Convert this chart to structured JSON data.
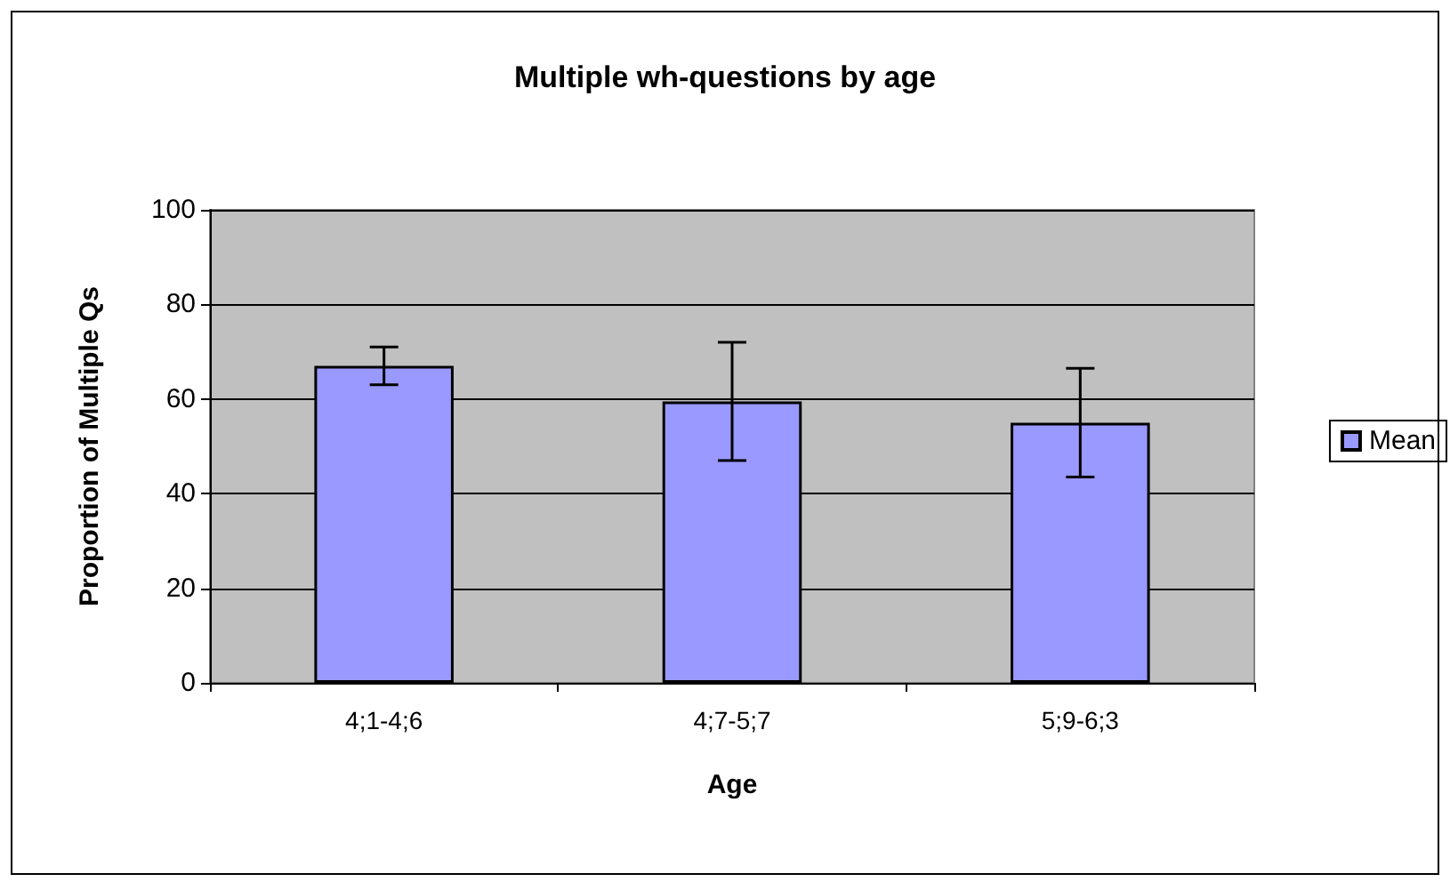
{
  "chart_data": {
    "type": "bar",
    "title": "Multiple wh-questions by age",
    "xlabel": "Age",
    "ylabel": "Proportion of Multiple Qs",
    "categories": [
      "4;1-4;6",
      "4;7-5;7",
      "5;9-6;3"
    ],
    "series": [
      {
        "name": "Mean",
        "color": "#9999ff",
        "values": [
          67,
          59.5,
          55
        ],
        "errors": [
          4,
          12.5,
          11.5
        ]
      }
    ],
    "ylim": [
      0,
      100
    ],
    "yticks": [
      0,
      20,
      40,
      60,
      80,
      100
    ],
    "grid": "y",
    "legend": "right"
  }
}
